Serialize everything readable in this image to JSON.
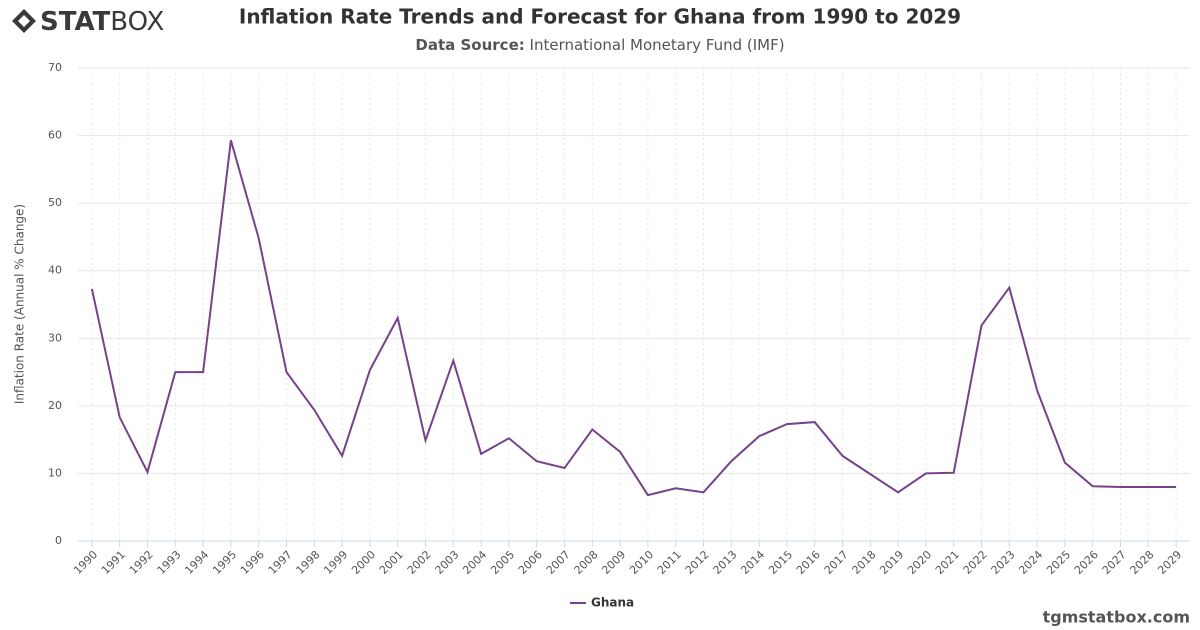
{
  "logo": {
    "bold": "STAT",
    "light": "BOX"
  },
  "footer": "tgmstatbox.com",
  "chart_data": {
    "type": "line",
    "title": "Inflation Rate Trends and Forecast for Ghana from 1990 to 2029",
    "source_label": "Data Source:",
    "source": "International Monetary Fund (IMF)",
    "y_label": "Inflation Rate (Annual % Change)",
    "categories": [
      "1990",
      "1991",
      "1992",
      "1993",
      "1994",
      "1995",
      "1996",
      "1997",
      "1998",
      "1999",
      "2000",
      "2001",
      "2002",
      "2003",
      "2004",
      "2005",
      "2006",
      "2007",
      "2008",
      "2009",
      "2010",
      "2011",
      "2012",
      "2013",
      "2014",
      "2015",
      "2016",
      "2017",
      "2018",
      "2019",
      "2020",
      "2021",
      "2022",
      "2023",
      "2024",
      "2025",
      "2026",
      "2027",
      "2028",
      "2029"
    ],
    "series": [
      {
        "name": "Ghana",
        "color": "#76428a",
        "values": [
          37.3,
          18.3,
          10.2,
          25.0,
          25.0,
          59.3,
          44.8,
          25.0,
          19.4,
          12.6,
          25.3,
          33.0,
          14.9,
          26.7,
          12.9,
          15.2,
          11.8,
          10.8,
          16.5,
          13.2,
          6.8,
          7.8,
          7.2,
          11.8,
          15.5,
          17.3,
          17.6,
          12.6,
          9.9,
          7.2,
          10.0,
          10.1,
          31.9,
          37.5,
          22.3,
          11.6,
          8.1,
          8.0,
          8.0,
          8.0
        ]
      }
    ],
    "ylim": [
      0,
      70
    ],
    "yticks": [
      0,
      10,
      20,
      30,
      40,
      50,
      60,
      70
    ],
    "grid": true
  }
}
